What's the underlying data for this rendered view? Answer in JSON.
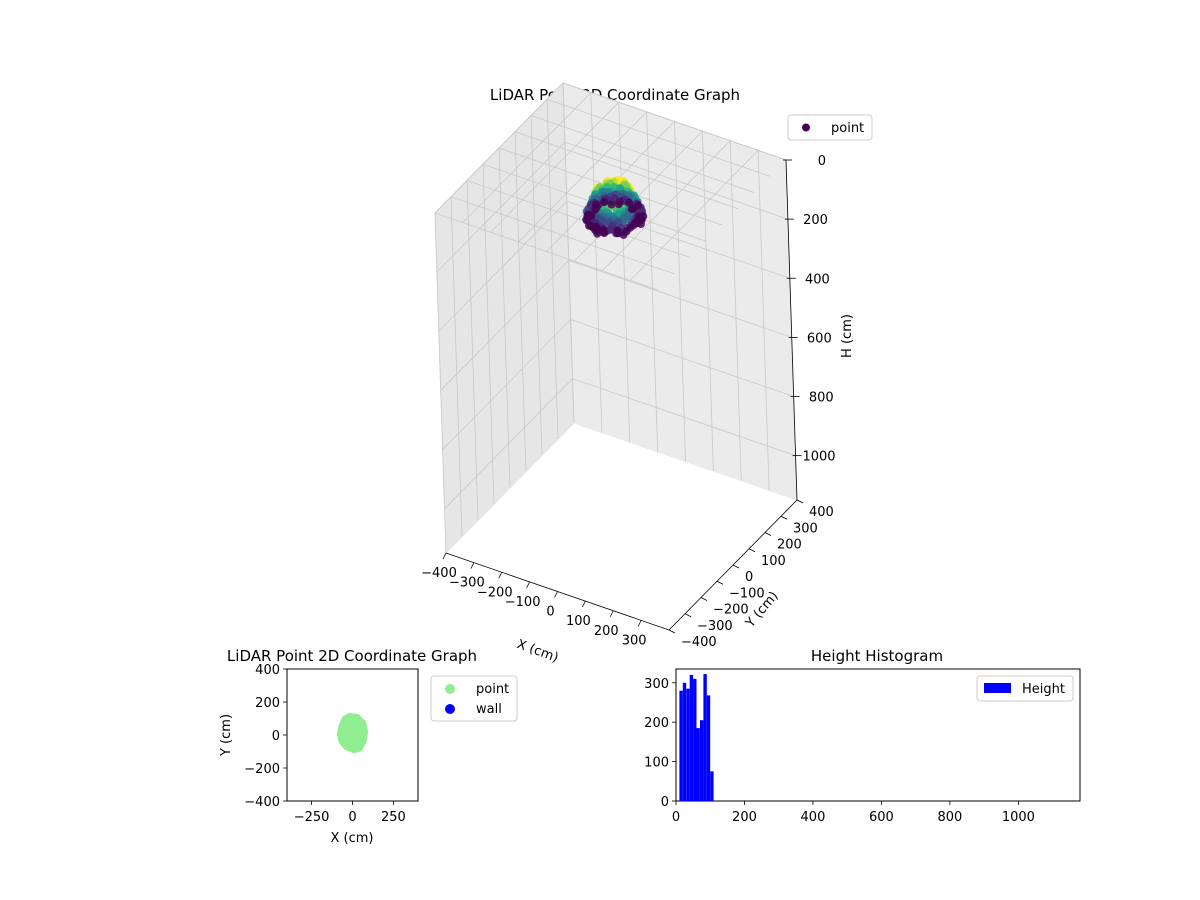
{
  "chart_data": [
    {
      "type": "scatter3d",
      "title": "LiDAR Point 3D Coordinate Graph",
      "xlabel": "X (cm)",
      "ylabel": "Y (cm)",
      "zlabel": "H (cm)",
      "xlim": [
        -400,
        400
      ],
      "ylim": [
        -400,
        400
      ],
      "zlim": [
        0,
        1150
      ],
      "z_inverted": true,
      "xticks": [
        -400,
        -300,
        -200,
        -100,
        0,
        100,
        200,
        300
      ],
      "yticks": [
        -400,
        -300,
        -200,
        -100,
        0,
        100,
        200,
        300,
        400
      ],
      "zticks": [
        0,
        200,
        400,
        600,
        800,
        1000
      ],
      "legend": [
        {
          "name": "point",
          "color": "#440154"
        }
      ],
      "legend_placement": "top-right",
      "grid": true,
      "colormap": "viridis",
      "cluster": {
        "x_range": [
          -90,
          100
        ],
        "y_range": [
          -90,
          110
        ],
        "h_range": [
          10,
          115
        ]
      }
    },
    {
      "type": "scatter",
      "title": "LiDAR Point 2D Coordinate Graph",
      "xlabel": "X (cm)",
      "ylabel": "Y (cm)",
      "xlim": [
        -400,
        400
      ],
      "ylim": [
        -400,
        400
      ],
      "xticks": [
        -250,
        0,
        250
      ],
      "yticks": [
        -400,
        -200,
        0,
        200,
        400
      ],
      "series": [
        {
          "name": "point",
          "color": "#90ee90",
          "outline": [
            [
              -50,
              100
            ],
            [
              -20,
              118
            ],
            [
              30,
              112
            ],
            [
              68,
              75
            ],
            [
              80,
              20
            ],
            [
              70,
              -40
            ],
            [
              45,
              -85
            ],
            [
              10,
              -95
            ],
            [
              -40,
              -75
            ],
            [
              -70,
              -40
            ],
            [
              -80,
              10
            ],
            [
              -70,
              55
            ]
          ]
        },
        {
          "name": "wall",
          "color": "#0000ff",
          "outline": []
        }
      ],
      "legend_placement": "outside-right"
    },
    {
      "type": "histogram",
      "title": "Height Histogram",
      "xlim": [
        0,
        1180
      ],
      "ylim": [
        0,
        335
      ],
      "xticks": [
        0,
        200,
        400,
        600,
        800,
        1000
      ],
      "yticks": [
        0,
        100,
        200,
        300
      ],
      "bin_width": 10,
      "bins": [
        [
          15,
          280
        ],
        [
          25,
          300
        ],
        [
          35,
          285
        ],
        [
          45,
          320
        ],
        [
          55,
          310
        ],
        [
          65,
          185
        ],
        [
          75,
          205
        ],
        [
          85,
          322
        ],
        [
          95,
          268
        ],
        [
          105,
          75
        ]
      ],
      "series": [
        {
          "name": "Height",
          "color": "#0000ff"
        }
      ],
      "legend_placement": "top-right"
    }
  ]
}
